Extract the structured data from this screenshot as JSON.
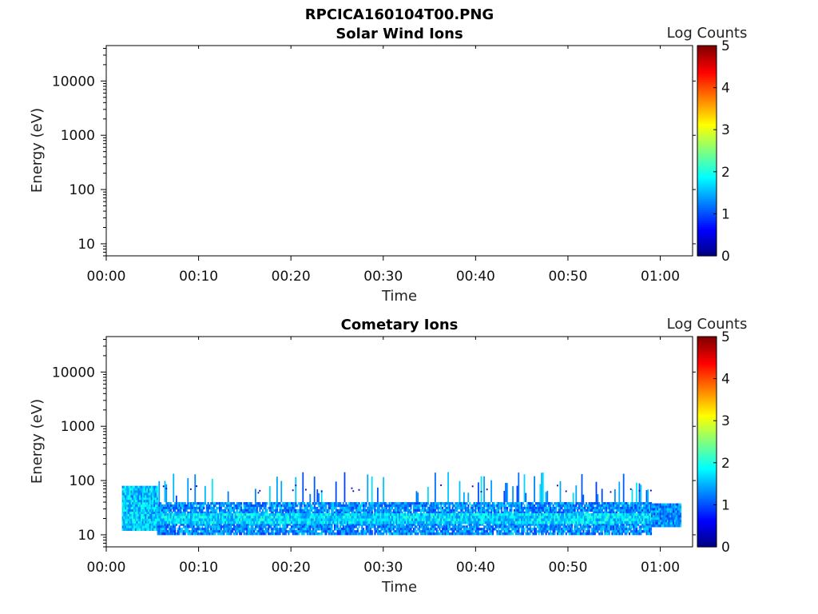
{
  "figure_title": "RPCICA160104T00.PNG",
  "chart_data": [
    {
      "type": "heatmap",
      "title": "Solar Wind Ions",
      "xlabel": "Time",
      "ylabel": "Energy (eV)",
      "yscale": "log",
      "ylim": [
        6,
        45000
      ],
      "xlim_minutes": [
        0,
        63.5
      ],
      "x_ticks": [
        "00:00",
        "00:10",
        "00:20",
        "00:30",
        "00:40",
        "00:50",
        "01:00"
      ],
      "y_ticks": [
        "10",
        "100",
        "1000",
        "10000"
      ],
      "colorbar": {
        "label": "Log Counts",
        "range": [
          0,
          5
        ],
        "ticks": [
          "0",
          "1",
          "2",
          "3",
          "4",
          "5"
        ]
      },
      "data": []
    },
    {
      "type": "heatmap",
      "title": "Cometary Ions",
      "xlabel": "Time",
      "ylabel": "Energy (eV)",
      "yscale": "log",
      "ylim": [
        6,
        45000
      ],
      "xlim_minutes": [
        0,
        63.5
      ],
      "x_ticks": [
        "00:00",
        "00:10",
        "00:20",
        "00:30",
        "00:40",
        "00:50",
        "01:00"
      ],
      "y_ticks": [
        "10",
        "100",
        "1000",
        "10000"
      ],
      "colorbar": {
        "label": "Log Counts",
        "range": [
          0,
          5
        ],
        "ticks": [
          "0",
          "1",
          "2",
          "3",
          "4",
          "5"
        ]
      },
      "data": [
        {
          "t_start_min": 1.7,
          "t_end_min": 5.5,
          "e_low_ev": 12,
          "e_high_ev": 80,
          "log_counts": 1.6
        },
        {
          "t_start_min": 5.5,
          "t_end_min": 59,
          "e_low_ev": 10,
          "e_high_ev": 40,
          "log_counts": 1.3
        },
        {
          "t_start_min": 5.5,
          "t_end_min": 59,
          "e_low_ev": 16,
          "e_high_ev": 25,
          "log_counts": 1.7
        },
        {
          "t_start_min": 59,
          "t_end_min": 62.2,
          "e_low_ev": 14,
          "e_high_ev": 38,
          "log_counts": 1.3
        }
      ]
    }
  ]
}
